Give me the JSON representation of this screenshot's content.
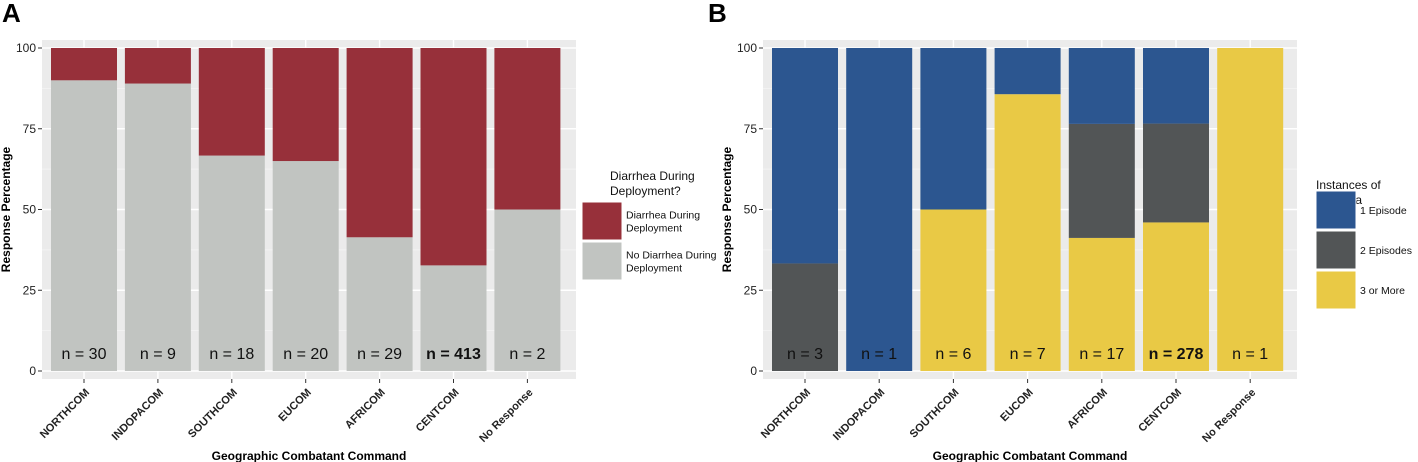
{
  "chart_data": [
    {
      "type": "bar",
      "stacked": true,
      "panel_label": "A",
      "xlabel": "Geographic Combatant Command",
      "ylabel": "Response Percentage",
      "ylim": [
        0,
        100
      ],
      "yticks": [
        0,
        25,
        50,
        75,
        100
      ],
      "categories": [
        "NORTHCOM",
        "INDOPACOM",
        "SOUTHCOM",
        "EUCOM",
        "AFRICOM",
        "CENTCOM",
        "No Response"
      ],
      "n_labels": [
        "n = 30",
        "n = 9",
        "n = 18",
        "n = 20",
        "n = 29",
        "n = 413",
        "n = 2"
      ],
      "bold_label_index": 5,
      "legend_title_lines": [
        "Diarrhea During",
        "Deployment?"
      ],
      "series": [
        {
          "name_lines": [
            "No Diarrhea During",
            "Deployment"
          ],
          "color": "#c1c4c1",
          "values": [
            90,
            89,
            66.7,
            65,
            41.4,
            32.7,
            50
          ]
        },
        {
          "name_lines": [
            "Diarrhea During",
            "Deployment"
          ],
          "color": "#97303a",
          "values": [
            10,
            11,
            33.3,
            35,
            58.6,
            67.3,
            50
          ]
        }
      ],
      "legend_order": [
        1,
        0
      ]
    },
    {
      "type": "bar",
      "stacked": true,
      "panel_label": "B",
      "xlabel": "Geographic Combatant Command",
      "ylabel": "Response Percentage",
      "ylim": [
        0,
        100
      ],
      "yticks": [
        0,
        25,
        50,
        75,
        100
      ],
      "categories": [
        "NORTHCOM",
        "INDOPACOM",
        "SOUTHCOM",
        "EUCOM",
        "AFRICOM",
        "CENTCOM",
        "No Response"
      ],
      "n_labels": [
        "n = 3",
        "n = 1",
        "n = 6",
        "n = 7",
        "n = 17",
        "n = 278",
        "n = 1"
      ],
      "bold_label_index": 5,
      "legend_title_lines": [
        "Instances of",
        "Diarrhea"
      ],
      "series": [
        {
          "name_lines": [
            "3 or More"
          ],
          "color": "#e9c945",
          "values": [
            0,
            0,
            50,
            85.7,
            41.2,
            46,
            100
          ]
        },
        {
          "name_lines": [
            "2 Episodes"
          ],
          "color": "#525556",
          "values": [
            33.3,
            0,
            0,
            0,
            35.3,
            30.6,
            0
          ]
        },
        {
          "name_lines": [
            "1 Episode"
          ],
          "color": "#2c5690",
          "values": [
            66.7,
            100,
            50,
            14.3,
            23.5,
            23.4,
            0
          ]
        }
      ],
      "legend_order": [
        2,
        1,
        0
      ]
    }
  ]
}
